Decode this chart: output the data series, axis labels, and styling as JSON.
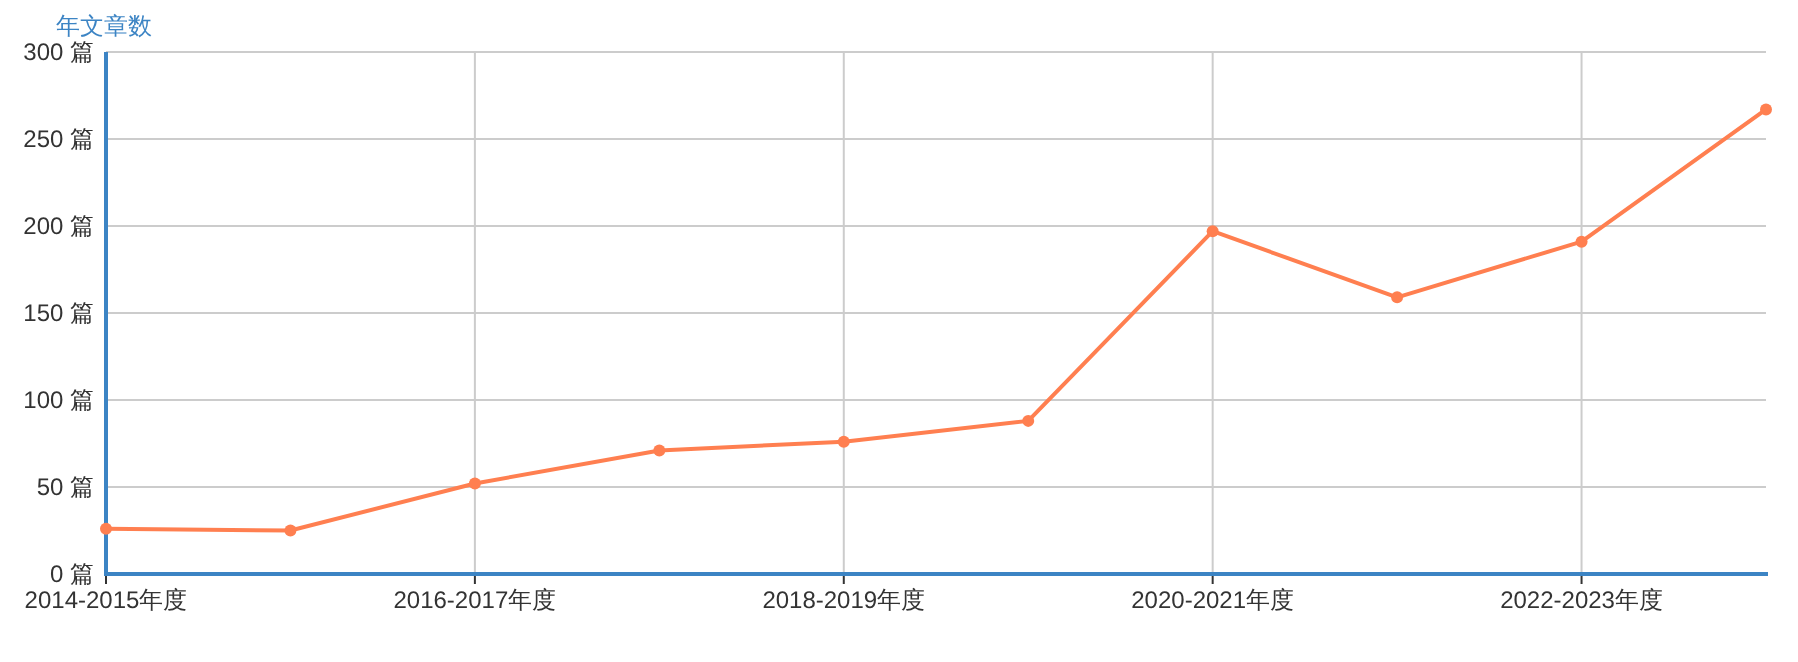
{
  "chart_data": {
    "type": "line",
    "ylabel": "年文章数",
    "categories": [
      "2014-2015年度",
      null,
      "2016-2017年度",
      null,
      "2018-2019年度",
      null,
      "2020-2021年度",
      null,
      "2022-2023年度",
      null
    ],
    "series": [
      {
        "color": "#ff7f50",
        "values": [
          26,
          25,
          52,
          71,
          76,
          88,
          197,
          159,
          191,
          267
        ]
      }
    ],
    "ylim": [
      0,
      300
    ],
    "yticks": [
      {
        "value": 0,
        "label": "0 篇"
      },
      {
        "value": 50,
        "label": "50 篇"
      },
      {
        "value": 100,
        "label": "100 篇"
      },
      {
        "value": 150,
        "label": "150 篇"
      },
      {
        "value": 200,
        "label": "200 篇"
      },
      {
        "value": 250,
        "label": "250 篇"
      },
      {
        "value": 300,
        "label": "300 篇"
      }
    ],
    "grid": true,
    "marker": "circle",
    "line_style": "solid"
  }
}
